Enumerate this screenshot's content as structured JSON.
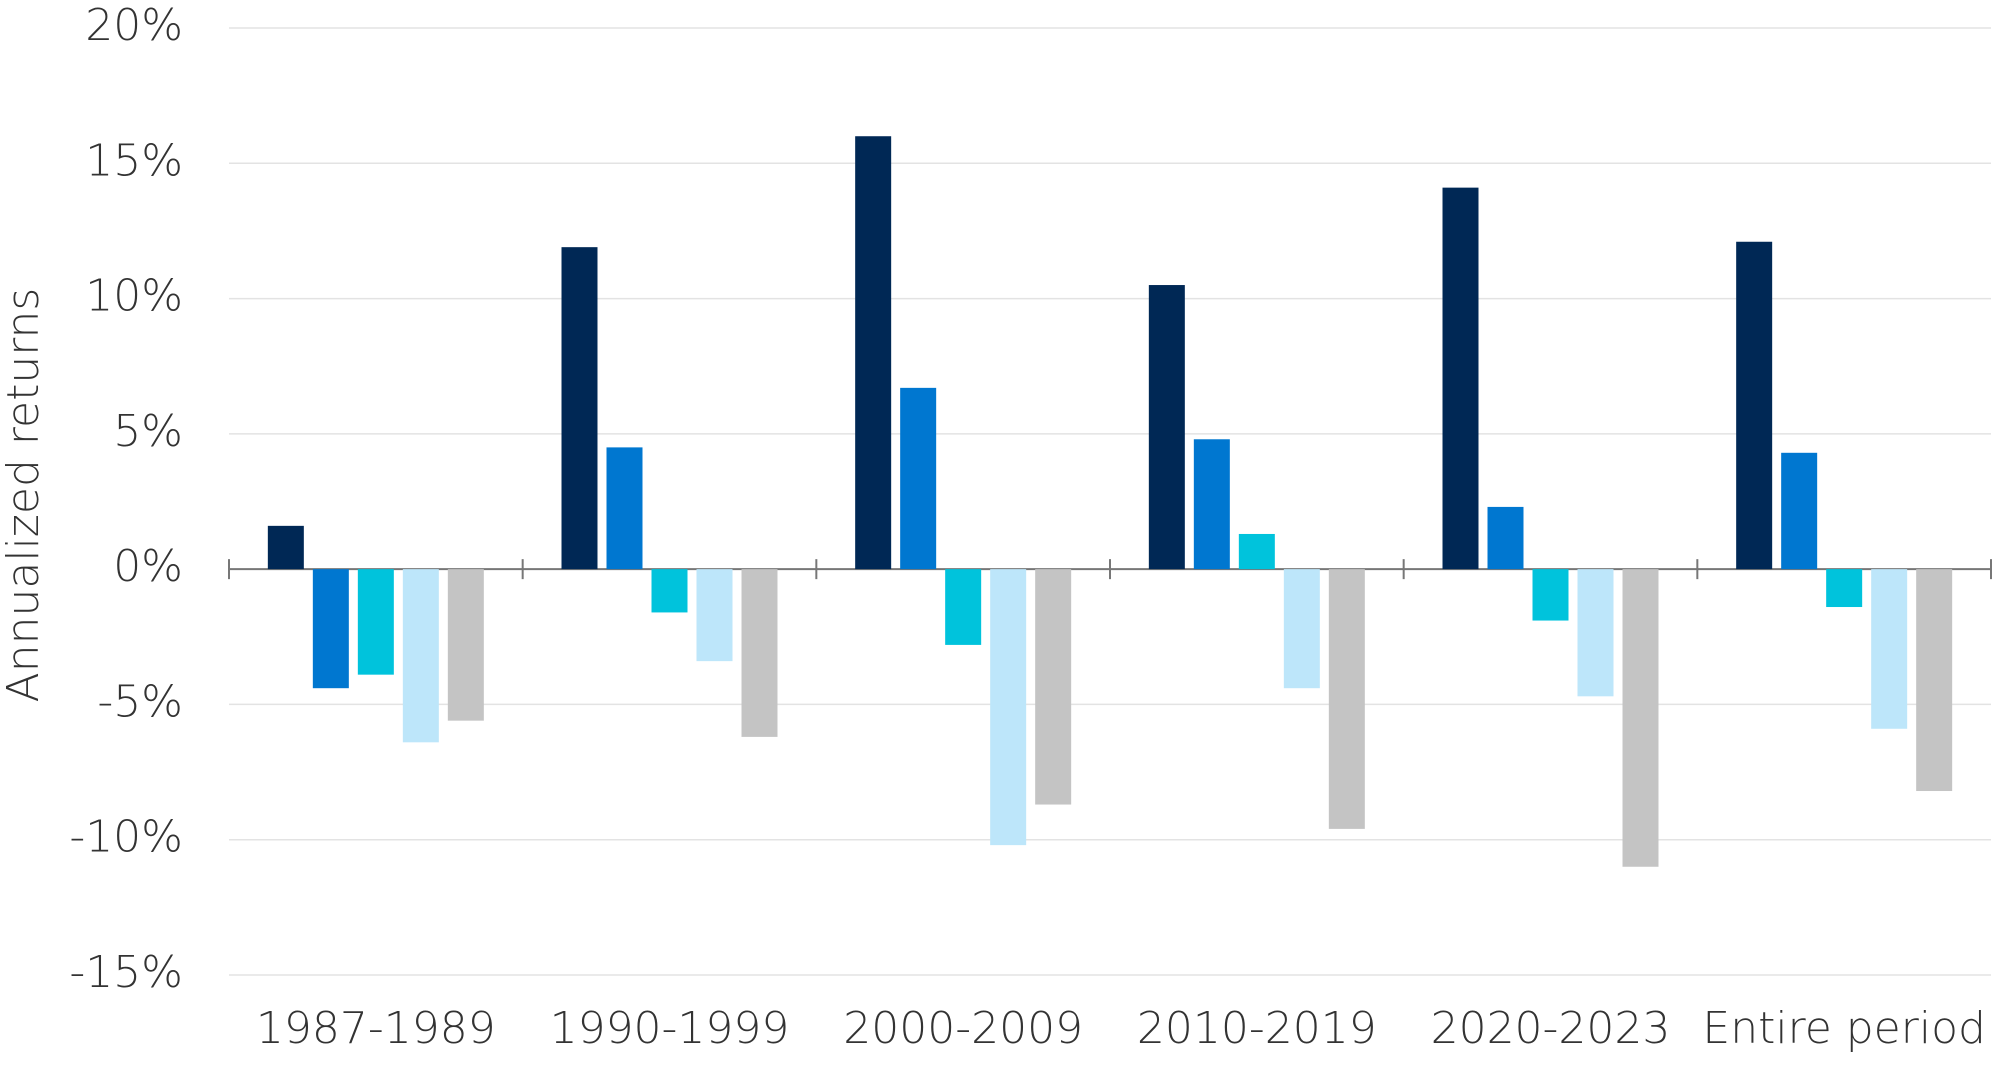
{
  "chart_data": {
    "type": "bar",
    "y_label": "Annualized returns",
    "categories": [
      "1987-1989",
      "1990-1999",
      "2000-2009",
      "2010-2019",
      "2020-2023",
      "Entire period"
    ],
    "series": [
      {
        "color": "#002855",
        "values": [
          1.6,
          11.9,
          16.0,
          10.5,
          14.1,
          12.1
        ]
      },
      {
        "color": "#0077d0",
        "values": [
          -4.4,
          4.5,
          6.7,
          4.8,
          2.3,
          4.3
        ]
      },
      {
        "color": "#00c3dc",
        "values": [
          -3.9,
          -1.6,
          -2.8,
          1.3,
          -1.9,
          -1.4
        ]
      },
      {
        "color": "#bde6fa",
        "values": [
          -6.4,
          -3.4,
          -10.2,
          -4.4,
          -4.7,
          -5.9
        ]
      },
      {
        "color": "#c4c4c4",
        "values": [
          -5.6,
          -6.2,
          -8.7,
          -9.6,
          -11.0,
          -8.2
        ]
      }
    ],
    "ylim": [
      -15,
      20
    ],
    "yticks": [
      {
        "value": -15,
        "label": "-15%"
      },
      {
        "value": -10,
        "label": "-10%"
      },
      {
        "value": -5,
        "label": "-5%"
      },
      {
        "value": 0,
        "label": "0%"
      },
      {
        "value": 5,
        "label": "5%"
      },
      {
        "value": 10,
        "label": "10%"
      },
      {
        "value": 15,
        "label": "15%"
      },
      {
        "value": 20,
        "label": "20%"
      }
    ],
    "grid": true
  }
}
